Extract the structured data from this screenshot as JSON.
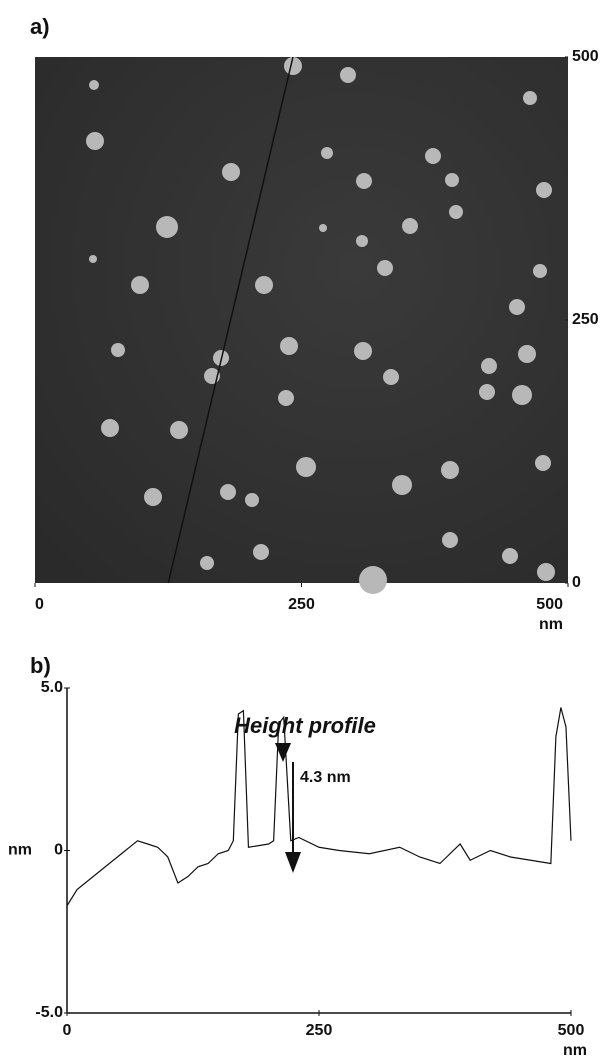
{
  "chart_data": [
    {
      "type": "image",
      "panel": "a)",
      "xlabel": "nm",
      "xlim": [
        0,
        500
      ],
      "ylim": [
        0,
        500
      ],
      "xticks": [
        0,
        250,
        500
      ],
      "yticks": [
        0,
        250,
        500
      ],
      "x": [
        125,
        242
      ],
      "series": [
        {
          "color": "#111111",
          "values": [
            0,
            500
          ]
        }
      ]
    },
    {
      "type": "line",
      "panel": "b)",
      "title": "Height profile",
      "xlabel": "nm",
      "ylabel": "nm",
      "annotation": "4.3 nm",
      "xlim": [
        0,
        500
      ],
      "ylim": [
        -5,
        5
      ],
      "xticks": [
        0,
        250,
        500
      ],
      "yticks": [
        {
          "value": -5,
          "label": "-5.0"
        },
        0,
        {
          "value": 5,
          "label": "5.0"
        }
      ],
      "x": [
        0,
        10,
        30,
        50,
        70,
        80,
        90,
        100,
        110,
        120,
        130,
        140,
        150,
        160,
        165,
        170,
        175,
        180,
        200,
        205,
        210,
        215,
        222,
        230,
        250,
        270,
        300,
        330,
        350,
        370,
        390,
        400,
        420,
        440,
        460,
        480,
        485,
        490,
        495,
        500
      ],
      "series": [
        {
          "color": "#111111",
          "values": [
            -1.7,
            -1.2,
            -0.7,
            -0.2,
            0.3,
            0.2,
            0.1,
            -0.2,
            -1.0,
            -0.8,
            -0.5,
            -0.4,
            -0.1,
            0.0,
            0.3,
            4.2,
            4.3,
            0.1,
            0.2,
            0.3,
            3.9,
            4.1,
            0.3,
            0.4,
            0.1,
            0.0,
            -0.1,
            0.1,
            -0.2,
            -0.4,
            0.2,
            -0.3,
            0.0,
            -0.2,
            -0.3,
            -0.4,
            3.5,
            4.4,
            3.8,
            0.3
          ]
        }
      ]
    }
  ]
}
